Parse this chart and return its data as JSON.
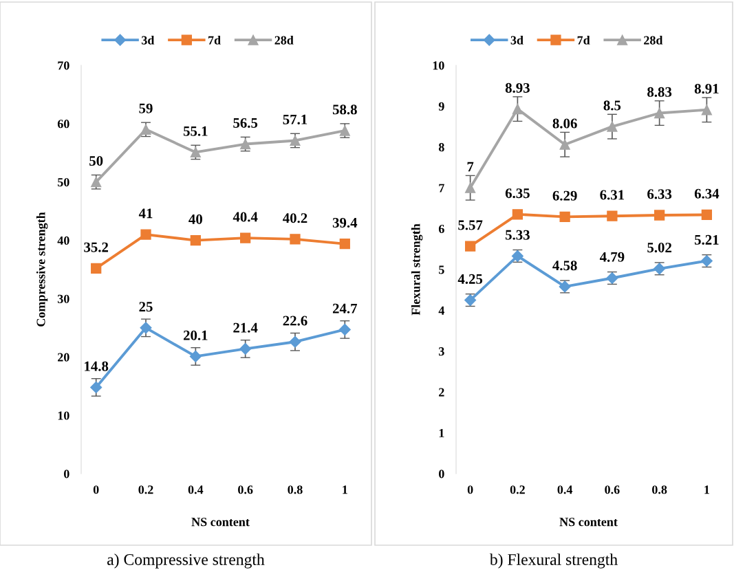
{
  "chart_data": [
    {
      "type": "line",
      "ylabel": "Compressive strength",
      "xlabel": "NS content",
      "categories": [
        "0",
        "0.2",
        "0.4",
        "0.6",
        "0.8",
        "1"
      ],
      "ylim": [
        0,
        70
      ],
      "yticks": [
        0,
        10,
        20,
        30,
        40,
        50,
        60,
        70
      ],
      "grid": false,
      "legend": "top",
      "data_labels": true,
      "line_style": "solid",
      "annotations": [
        "a) Compressive strength"
      ],
      "series": [
        {
          "name": "3d",
          "color": "#5b9bd5",
          "marker": "diamond",
          "values": [
            14.8,
            25,
            20.1,
            21.4,
            22.6,
            24.7
          ],
          "errors": [
            1.5,
            1.5,
            1.5,
            1.5,
            1.5,
            1.5
          ]
        },
        {
          "name": "7d",
          "color": "#ed7d31",
          "marker": "square",
          "values": [
            35.2,
            41,
            40,
            40.4,
            40.2,
            39.4
          ]
        },
        {
          "name": "28d",
          "color": "#a5a5a5",
          "marker": "triangle",
          "values": [
            50,
            59,
            55.1,
            56.5,
            57.1,
            58.8
          ],
          "errors": [
            1.2,
            1.2,
            1.2,
            1.2,
            1.2,
            1.2
          ]
        }
      ]
    },
    {
      "type": "line",
      "ylabel": "Flexural strength",
      "xlabel": "NS content",
      "categories": [
        "0",
        "0.2",
        "0.4",
        "0.6",
        "0.8",
        "1"
      ],
      "ylim": [
        0,
        10
      ],
      "yticks": [
        0,
        1,
        2,
        3,
        4,
        5,
        6,
        7,
        8,
        9,
        10
      ],
      "grid": false,
      "legend": "top",
      "data_labels": true,
      "line_style": "solid",
      "annotations": [
        "b) Flexural strength"
      ],
      "series": [
        {
          "name": "3d",
          "color": "#5b9bd5",
          "marker": "diamond",
          "values": [
            4.25,
            5.33,
            4.58,
            4.79,
            5.02,
            5.21
          ],
          "errors": [
            0.15,
            0.15,
            0.15,
            0.15,
            0.15,
            0.15
          ]
        },
        {
          "name": "7d",
          "color": "#ed7d31",
          "marker": "square",
          "values": [
            5.57,
            6.35,
            6.29,
            6.31,
            6.33,
            6.34
          ]
        },
        {
          "name": "28d",
          "color": "#a5a5a5",
          "marker": "triangle",
          "values": [
            7,
            8.93,
            8.06,
            8.5,
            8.83,
            8.91
          ],
          "errors": [
            0.3,
            0.3,
            0.3,
            0.3,
            0.3,
            0.3
          ]
        }
      ]
    }
  ]
}
